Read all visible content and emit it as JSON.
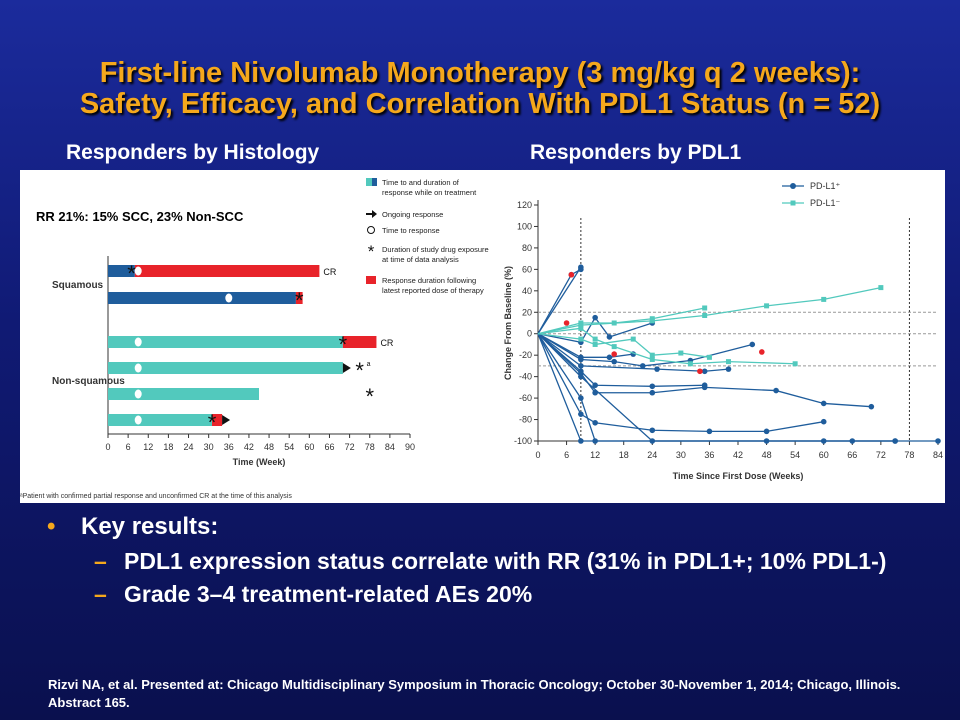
{
  "title": {
    "line1": "First-line Nivolumab Monotherapy (3 mg/kg q 2 weeks):",
    "line2": "Safety, Efficacy, and Correlation With PDL1 Status (n = 52)"
  },
  "subtitles": {
    "left": "Responders by Histology",
    "right": "Responders by PDL1"
  },
  "bullets": {
    "main": "Key results:",
    "items": [
      "PDL1 expression status correlate with RR (31% in PDL1+; 10% PDL1-)",
      "Grade 3–4 treatment-related AEs 20%"
    ]
  },
  "citation": "Rizvi NA, et al. Presented at: Chicago Multidisciplinary  Symposium in Thoracic Oncology; October 30-November 1, 2014; Chicago, Illinois. Abstract 165.",
  "colors": {
    "title": "#f5a81c",
    "bullet_marker": "#f5a81c",
    "squamous_bar": "#1f5d9c",
    "nonsquamous_bar": "#52c9bd",
    "post_treatment": "#e8232a",
    "pdl1_pos": "#1f5d9c",
    "pdl1_neg": "#52c9bd"
  },
  "chart_data": [
    {
      "type": "bar",
      "orientation": "horizontal",
      "annotation": "RR 21%: 15% SCC, 23% Non-SCC",
      "xlabel": "Time (Week)",
      "xlim": [
        0,
        90
      ],
      "xticks": [
        0,
        6,
        12,
        18,
        24,
        30,
        36,
        42,
        48,
        54,
        60,
        66,
        72,
        78,
        84,
        90
      ],
      "groups": [
        "Squamous",
        "Non-squamous"
      ],
      "legend": [
        {
          "key": "treatment",
          "text": [
            "Time to and duration of",
            "response while on treatment"
          ]
        },
        {
          "key": "ongoing",
          "text": [
            "Ongoing response"
          ]
        },
        {
          "key": "ttr",
          "text": [
            "Time to response"
          ]
        },
        {
          "key": "exposure",
          "text": [
            "Duration of study drug exposure",
            "at time of data analysis"
          ]
        },
        {
          "key": "post",
          "text": [
            "Response duration following",
            "latest reported dose of therapy"
          ]
        }
      ],
      "footnote": "ᵃPatient with confirmed partial response and unconfirmed CR at the time of this analysis",
      "rows": [
        {
          "group": "Squamous",
          "treatment_end": 8,
          "response_end": 63,
          "time_to_response": 9,
          "exposure": 7,
          "ongoing": false,
          "label": "CR"
        },
        {
          "group": "Squamous",
          "treatment_end": 56,
          "response_end": 58,
          "time_to_response": 36,
          "exposure": 57,
          "ongoing": false,
          "label": ""
        },
        {
          "group": "Non-squamous",
          "treatment_end": 70,
          "response_end": 80,
          "time_to_response": 9,
          "exposure": 70,
          "ongoing": false,
          "label": "CR"
        },
        {
          "group": "Non-squamous",
          "treatment_end": 70,
          "response_end": 70,
          "time_to_response": 9,
          "exposure": 75,
          "ongoing": true,
          "label": "a"
        },
        {
          "group": "Non-squamous",
          "treatment_end": 45,
          "response_end": 45,
          "time_to_response": 9,
          "exposure": 78,
          "ongoing": false,
          "label": ""
        },
        {
          "group": "Non-squamous",
          "treatment_end": 31,
          "response_end": 34,
          "time_to_response": 9,
          "exposure": 31,
          "ongoing": true,
          "label": ""
        }
      ]
    },
    {
      "type": "line",
      "xlabel": "Time Since First Dose (Weeks)",
      "ylabel": "Change From Baseline (%)",
      "xlim": [
        0,
        84
      ],
      "ylim": [
        -100,
        120
      ],
      "xticks": [
        0,
        6,
        12,
        18,
        24,
        30,
        36,
        42,
        48,
        54,
        60,
        66,
        72,
        78,
        84
      ],
      "yticks": [
        120,
        100,
        80,
        60,
        40,
        20,
        0,
        -20,
        -40,
        -60,
        -80,
        -100
      ],
      "reference_lines": [
        20,
        0,
        -30
      ],
      "vertical_lines": [
        9,
        78
      ],
      "legend": [
        "PD-L1⁺",
        "PD-L1⁻"
      ],
      "series": [
        {
          "name": "PD-L1⁺",
          "color": "#1f5d9c",
          "lines": [
            [
              [
                0,
                0
              ],
              [
                9,
                62
              ]
            ],
            [
              [
                0,
                0
              ],
              [
                7,
                55
              ],
              [
                9,
                60
              ]
            ],
            [
              [
                0,
                0
              ],
              [
                9,
                -8
              ],
              [
                12,
                15
              ],
              [
                15,
                -3
              ],
              [
                24,
                10
              ]
            ],
            [
              [
                0,
                0
              ],
              [
                9,
                -22
              ],
              [
                15,
                -22
              ],
              [
                20,
                -19
              ]
            ],
            [
              [
                0,
                0
              ],
              [
                9,
                -24
              ],
              [
                16,
                -26
              ],
              [
                22,
                -30
              ],
              [
                32,
                -25
              ],
              [
                45,
                -10
              ]
            ],
            [
              [
                0,
                0
              ],
              [
                9,
                -30
              ],
              [
                25,
                -33
              ],
              [
                35,
                -35
              ],
              [
                40,
                -33
              ]
            ],
            [
              [
                0,
                0
              ],
              [
                9,
                -35
              ],
              [
                12,
                -48
              ],
              [
                24,
                -49
              ],
              [
                35,
                -48
              ]
            ],
            [
              [
                0,
                0
              ],
              [
                9,
                -37
              ],
              [
                12,
                -55
              ],
              [
                24,
                -55
              ],
              [
                35,
                -50
              ],
              [
                50,
                -53
              ],
              [
                60,
                -65
              ],
              [
                70,
                -68
              ]
            ],
            [
              [
                0,
                0
              ],
              [
                9,
                -40
              ],
              [
                24,
                -100
              ],
              [
                48,
                -100
              ],
              [
                66,
                -100
              ],
              [
                75,
                -100
              ]
            ],
            [
              [
                0,
                0
              ],
              [
                9,
                -75
              ],
              [
                12,
                -83
              ],
              [
                24,
                -90
              ],
              [
                36,
                -91
              ],
              [
                48,
                -91
              ],
              [
                60,
                -82
              ]
            ],
            [
              [
                0,
                0
              ],
              [
                9,
                -100
              ],
              [
                60,
                -100
              ],
              [
                75,
                -100
              ]
            ],
            [
              [
                0,
                0
              ],
              [
                9,
                -60
              ],
              [
                12,
                -100
              ],
              [
                84,
                -100
              ]
            ]
          ]
        },
        {
          "name": "PD-L1⁻",
          "color": "#52c9bd",
          "lines": [
            [
              [
                0,
                0
              ],
              [
                9,
                8
              ],
              [
                24,
                12
              ],
              [
                35,
                17
              ],
              [
                48,
                26
              ],
              [
                60,
                32
              ],
              [
                72,
                43
              ]
            ],
            [
              [
                0,
                0
              ],
              [
                9,
                10
              ],
              [
                16,
                10
              ],
              [
                24,
                14
              ],
              [
                35,
                24
              ]
            ],
            [
              [
                0,
                0
              ],
              [
                9,
                -5
              ],
              [
                12,
                -10
              ],
              [
                20,
                -5
              ],
              [
                24,
                -20
              ],
              [
                30,
                -18
              ],
              [
                36,
                -22
              ]
            ],
            [
              [
                0,
                0
              ],
              [
                9,
                5
              ],
              [
                12,
                -5
              ],
              [
                16,
                -12
              ],
              [
                24,
                -24
              ],
              [
                32,
                -28
              ],
              [
                40,
                -26
              ],
              [
                54,
                -28
              ]
            ]
          ]
        },
        {
          "name": "PD-L1⁺ with post-treatment response",
          "color": "#e8232a",
          "points": [
            [
              6,
              10
            ],
            [
              7,
              55
            ],
            [
              16,
              -19
            ],
            [
              34,
              -35
            ],
            [
              47,
              -17
            ]
          ]
        }
      ]
    }
  ]
}
